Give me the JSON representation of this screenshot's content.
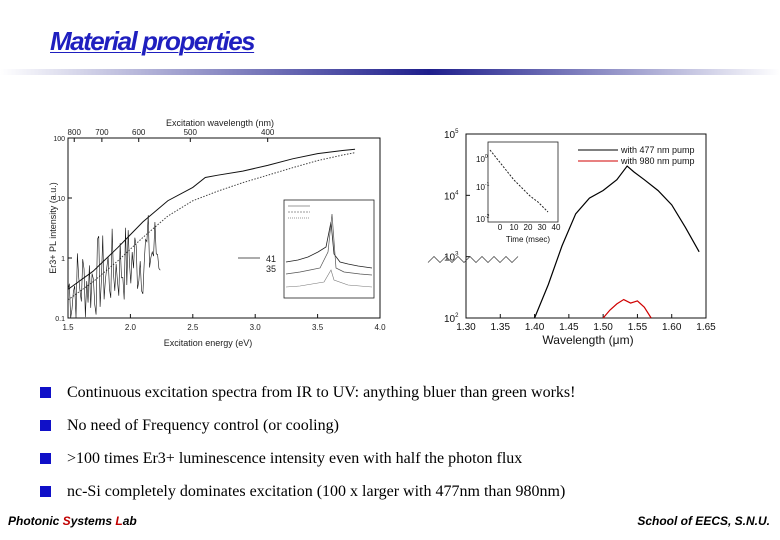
{
  "slide": {
    "title": "Material properties",
    "bullets": [
      "Continuous excitation spectra from IR to UV: anything bluer than green works!",
      "No need of Frequency control (or cooling)",
      ">100 times Er3+ luminescence intensity even with half the photon flux",
      "nc-Si completely dominates excitation (100 x larger with 477nm than 980nm)"
    ],
    "footer": {
      "lab_part1": "Photonic ",
      "lab_S": "S",
      "lab_part2": "ystems ",
      "lab_L": "L",
      "lab_part3": "ab",
      "school": "School of EECS, S.N.U."
    },
    "colors": {
      "title": "#1f1fbf",
      "bullet": "#1010c8",
      "accent": "#c00000"
    }
  },
  "chart_data": [
    {
      "type": "line",
      "title": "",
      "top_axis_label": "Excitation wavelength (nm)",
      "top_ticks": [
        "800",
        "700",
        "600",
        "500",
        "400"
      ],
      "xlabel": "Excitation energy (eV)",
      "ylabel": "Er3+ PL intensity (a.u.)",
      "x_ticks": [
        "1.5",
        "2.0",
        "2.5",
        "3.0",
        "3.5",
        "4.0"
      ],
      "y_ticks": [
        "100",
        "10",
        "1",
        "0.1"
      ],
      "xlim": [
        1.5,
        4.0
      ],
      "y_log": true,
      "ylim": [
        0.1,
        100
      ],
      "series": [
        {
          "x": [
            1.5,
            1.7,
            1.9,
            2.1,
            2.3,
            2.5,
            2.6,
            2.7,
            2.9,
            3.1,
            3.3,
            3.5,
            3.7,
            3.8
          ],
          "y": [
            0.3,
            0.6,
            1.5,
            4.0,
            9.0,
            15,
            22,
            24,
            28,
            35,
            45,
            55,
            62,
            65
          ]
        },
        {
          "x": [
            1.5,
            1.7,
            1.9,
            2.1,
            2.3,
            2.5,
            2.7,
            2.9,
            3.1,
            3.3,
            3.5,
            3.7,
            3.8
          ],
          "y": [
            0.2,
            0.4,
            0.9,
            2.2,
            5.0,
            9.0,
            13,
            18,
            24,
            32,
            42,
            52,
            57
          ]
        }
      ],
      "inset_labels": [
        "41",
        "35"
      ]
    },
    {
      "type": "line",
      "title": "",
      "xlabel": "Wavelength (μm)",
      "x_ticks": [
        "1.30",
        "1.35",
        "1.40",
        "1.45",
        "1.50",
        "1.55",
        "1.60",
        "1.65"
      ],
      "y_ticks": [
        "10",
        "10",
        "10",
        "10"
      ],
      "y_exponents": [
        "5",
        "4",
        "3",
        "2"
      ],
      "xlim": [
        1.3,
        1.65
      ],
      "y_log": true,
      "ylim": [
        100,
        100000
      ],
      "legend": "top-right",
      "series": [
        {
          "name": "with 477 nm pump",
          "color": "#000000",
          "x": [
            1.4,
            1.42,
            1.44,
            1.46,
            1.48,
            1.5,
            1.52,
            1.535,
            1.545,
            1.56,
            1.58,
            1.6,
            1.62,
            1.64
          ],
          "y": [
            100,
            350,
            1500,
            5000,
            9000,
            12000,
            18000,
            30000,
            24000,
            18000,
            12000,
            7000,
            3000,
            1200
          ]
        },
        {
          "name": "with 980 nm pump",
          "color": "#d00000",
          "x": [
            1.5,
            1.51,
            1.52,
            1.53,
            1.54,
            1.55,
            1.56,
            1.57
          ],
          "y": [
            100,
            135,
            170,
            200,
            175,
            190,
            150,
            100
          ]
        }
      ],
      "inset": {
        "xlabel": "Time (msec)",
        "x_ticks": [
          "0",
          "10",
          "20",
          "30",
          "40"
        ],
        "y_ticks": [
          "10",
          "10",
          "10"
        ],
        "y_exponents": [
          "0",
          "-1",
          "-2"
        ]
      }
    }
  ]
}
